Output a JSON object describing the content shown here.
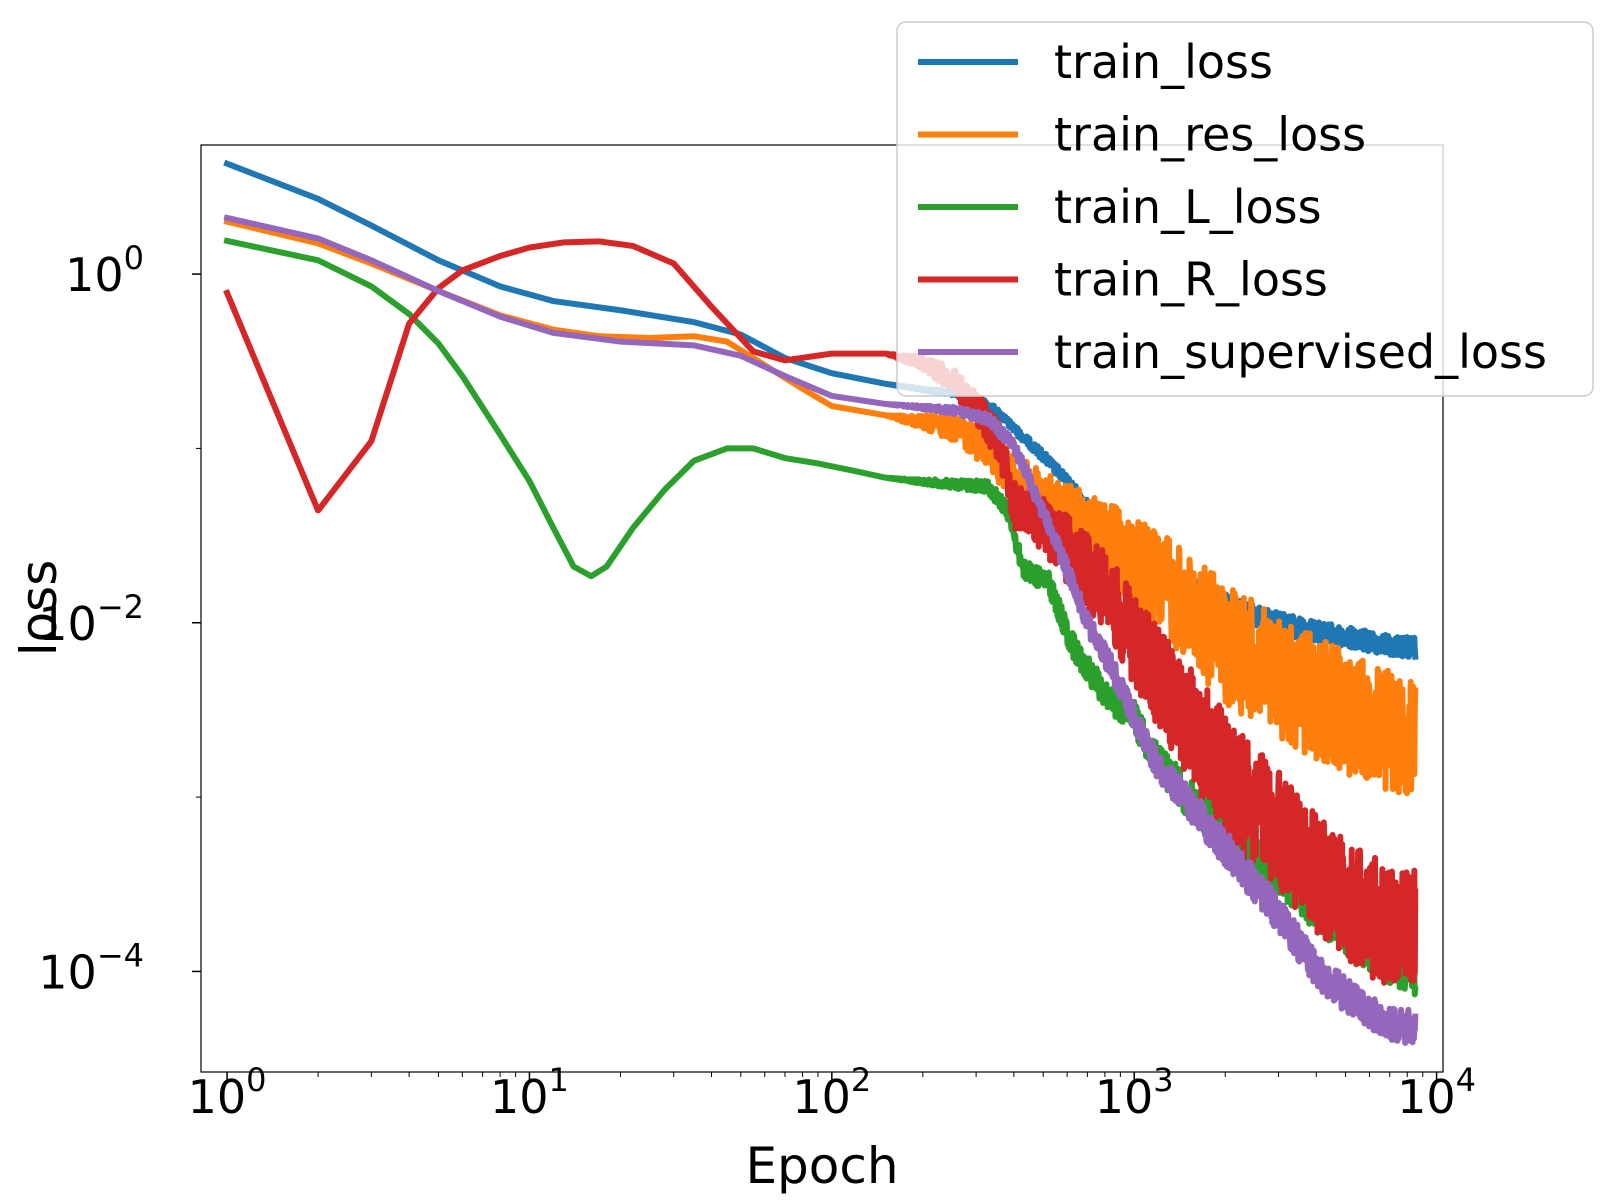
{
  "chart_data": {
    "type": "line",
    "title": "",
    "xlabel": "Epoch",
    "ylabel": "loss",
    "xscale": "log",
    "yscale": "log",
    "xlim": [
      0.82,
      10500
    ],
    "ylim": [
      2.65e-05,
      5.5
    ],
    "grid": false,
    "legend_position": "top-right",
    "x_ticks": [
      {
        "value": 1,
        "base": "10",
        "exp": "0"
      },
      {
        "value": 10,
        "base": "10",
        "exp": "1"
      },
      {
        "value": 100,
        "base": "10",
        "exp": "2"
      },
      {
        "value": 1000,
        "base": "10",
        "exp": "3"
      },
      {
        "value": 10000,
        "base": "10",
        "exp": "4"
      }
    ],
    "y_ticks": [
      {
        "value": 1,
        "base": "10",
        "exp": "0"
      },
      {
        "value": 0.01,
        "base": "10",
        "exp": "−2"
      },
      {
        "value": 0.0001,
        "base": "10",
        "exp": "−4"
      }
    ],
    "series": [
      {
        "name": "train_loss",
        "color": "#1f77b4",
        "points": [
          [
            1,
            4.3
          ],
          [
            2,
            2.7
          ],
          [
            3,
            1.9
          ],
          [
            5,
            1.2
          ],
          [
            8,
            0.85
          ],
          [
            12,
            0.7
          ],
          [
            20,
            0.62
          ],
          [
            35,
            0.53
          ],
          [
            50,
            0.45
          ],
          [
            70,
            0.33
          ],
          [
            100,
            0.27
          ],
          [
            150,
            0.235
          ],
          [
            200,
            0.22
          ],
          [
            260,
            0.21
          ],
          [
            300,
            0.2
          ],
          [
            350,
            0.17
          ],
          [
            400,
            0.135
          ],
          [
            500,
            0.095
          ],
          [
            600,
            0.068
          ],
          [
            700,
            0.05
          ],
          [
            850,
            0.036
          ],
          [
            1000,
            0.028
          ],
          [
            1300,
            0.021
          ],
          [
            1700,
            0.016
          ],
          [
            2200,
            0.013
          ],
          [
            3000,
            0.011
          ],
          [
            4000,
            0.0098
          ],
          [
            5500,
            0.0088
          ],
          [
            7000,
            0.0082
          ],
          [
            8500,
            0.0079
          ]
        ],
        "noise": 0.12
      },
      {
        "name": "train_res_loss",
        "color": "#ff7f0e",
        "points": [
          [
            1,
            2.0
          ],
          [
            2,
            1.5
          ],
          [
            3,
            1.15
          ],
          [
            5,
            0.8
          ],
          [
            8,
            0.58
          ],
          [
            12,
            0.48
          ],
          [
            17,
            0.44
          ],
          [
            25,
            0.43
          ],
          [
            35,
            0.44
          ],
          [
            45,
            0.41
          ],
          [
            60,
            0.3
          ],
          [
            80,
            0.22
          ],
          [
            100,
            0.175
          ],
          [
            150,
            0.155
          ],
          [
            200,
            0.15
          ],
          [
            260,
            0.147
          ],
          [
            320,
            0.12
          ],
          [
            400,
            0.085
          ],
          [
            500,
            0.065
          ],
          [
            700,
            0.048
          ],
          [
            1000,
            0.034
          ],
          [
            1300,
            0.025
          ],
          [
            1700,
            0.017
          ],
          [
            2200,
            0.012
          ],
          [
            3000,
            0.0085
          ],
          [
            4000,
            0.0065
          ],
          [
            5500,
            0.005
          ],
          [
            7000,
            0.0042
          ],
          [
            8500,
            0.0038
          ]
        ],
        "noise": 0.7
      },
      {
        "name": "train_L_loss",
        "color": "#2ca02c",
        "points": [
          [
            1,
            1.55
          ],
          [
            2,
            1.2
          ],
          [
            3,
            0.85
          ],
          [
            4,
            0.59
          ],
          [
            5,
            0.4
          ],
          [
            6,
            0.26
          ],
          [
            8,
            0.12
          ],
          [
            10,
            0.065
          ],
          [
            12,
            0.035
          ],
          [
            14,
            0.021
          ],
          [
            16,
            0.0185
          ],
          [
            18,
            0.021
          ],
          [
            22,
            0.035
          ],
          [
            28,
            0.058
          ],
          [
            35,
            0.085
          ],
          [
            45,
            0.1
          ],
          [
            55,
            0.1
          ],
          [
            70,
            0.088
          ],
          [
            90,
            0.082
          ],
          [
            120,
            0.074
          ],
          [
            150,
            0.068
          ],
          [
            200,
            0.066
          ],
          [
            260,
            0.065
          ],
          [
            330,
            0.064
          ],
          [
            380,
            0.048
          ],
          [
            430,
            0.022
          ],
          [
            520,
            0.019
          ],
          [
            620,
            0.0085
          ],
          [
            800,
            0.0045
          ],
          [
            1000,
            0.0033
          ],
          [
            1200,
            0.0019
          ],
          [
            1500,
            0.0012
          ],
          [
            2000,
            0.00075
          ],
          [
            3000,
            0.00045
          ],
          [
            4000,
            0.00028
          ],
          [
            5500,
            0.00018
          ],
          [
            7000,
            0.00014
          ],
          [
            8500,
            0.00012
          ]
        ],
        "noise": 0.25
      },
      {
        "name": "train_R_loss",
        "color": "#d62728",
        "points": [
          [
            1,
            0.78
          ],
          [
            2,
            0.044
          ],
          [
            3,
            0.11
          ],
          [
            4,
            0.52
          ],
          [
            5,
            0.83
          ],
          [
            6,
            1.05
          ],
          [
            8,
            1.27
          ],
          [
            10,
            1.42
          ],
          [
            13,
            1.52
          ],
          [
            17,
            1.54
          ],
          [
            22,
            1.45
          ],
          [
            30,
            1.15
          ],
          [
            40,
            0.65
          ],
          [
            55,
            0.36
          ],
          [
            70,
            0.32
          ],
          [
            100,
            0.35
          ],
          [
            150,
            0.35
          ],
          [
            200,
            0.33
          ],
          [
            250,
            0.28
          ],
          [
            300,
            0.2
          ],
          [
            360,
            0.13
          ],
          [
            400,
            0.058
          ],
          [
            500,
            0.048
          ],
          [
            600,
            0.036
          ],
          [
            800,
            0.022
          ],
          [
            1000,
            0.012
          ],
          [
            1300,
            0.0065
          ],
          [
            1700,
            0.0035
          ],
          [
            2200,
            0.0019
          ],
          [
            3000,
            0.0011
          ],
          [
            4000,
            0.00065
          ],
          [
            5500,
            0.0004
          ],
          [
            7000,
            0.00032
          ],
          [
            8500,
            0.0003
          ]
        ],
        "noise": 0.7
      },
      {
        "name": "train_supervised_loss",
        "color": "#9467bd",
        "points": [
          [
            1,
            2.1
          ],
          [
            2,
            1.6
          ],
          [
            3,
            1.2
          ],
          [
            5,
            0.8
          ],
          [
            8,
            0.57
          ],
          [
            12,
            0.46
          ],
          [
            20,
            0.41
          ],
          [
            35,
            0.39
          ],
          [
            50,
            0.34
          ],
          [
            70,
            0.26
          ],
          [
            100,
            0.2
          ],
          [
            150,
            0.18
          ],
          [
            200,
            0.175
          ],
          [
            260,
            0.17
          ],
          [
            330,
            0.155
          ],
          [
            400,
            0.11
          ],
          [
            450,
            0.07
          ],
          [
            520,
            0.04
          ],
          [
            600,
            0.022
          ],
          [
            700,
            0.011
          ],
          [
            850,
            0.006
          ],
          [
            1000,
            0.0032
          ],
          [
            1200,
            0.0017
          ],
          [
            1500,
            0.0011
          ],
          [
            2000,
            0.0006
          ],
          [
            3000,
            0.00025
          ],
          [
            4000,
            0.00012
          ],
          [
            5500,
            7.5e-05
          ],
          [
            7000,
            6e-05
          ],
          [
            8500,
            5.5e-05
          ]
        ],
        "noise": 0.2
      }
    ]
  }
}
